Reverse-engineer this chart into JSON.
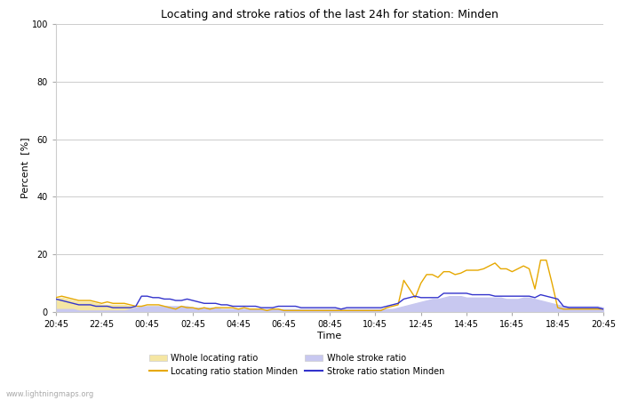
{
  "title": "Locating and stroke ratios of the last 24h for station: Minden",
  "xlabel": "Time",
  "ylabel": "Percent  [%]",
  "xlim": [
    0,
    96
  ],
  "ylim": [
    0,
    100
  ],
  "yticks": [
    0,
    20,
    40,
    60,
    80,
    100
  ],
  "xtick_labels": [
    "20:45",
    "22:45",
    "00:45",
    "02:45",
    "04:45",
    "06:45",
    "08:45",
    "10:45",
    "12:45",
    "14:45",
    "16:45",
    "18:45",
    "20:45"
  ],
  "xtick_positions": [
    0,
    8,
    16,
    24,
    32,
    40,
    48,
    56,
    64,
    72,
    80,
    88,
    96
  ],
  "color_locating_fill": "#f5e6a3",
  "color_locating_line": "#e6a800",
  "color_stroke_fill": "#c8c8f0",
  "color_stroke_line": "#3333cc",
  "watermark": "www.lightningmaps.org",
  "legend_labels": [
    "Whole locating ratio",
    "Locating ratio station Minden",
    "Whole stroke ratio",
    "Stroke ratio station Minden"
  ],
  "whole_locating": [
    4.5,
    5.0,
    4.5,
    4.0,
    3.5,
    3.5,
    3.5,
    3.0,
    2.5,
    2.5,
    2.5,
    2.5,
    2.5,
    2.0,
    1.5,
    1.5,
    2.0,
    2.0,
    2.0,
    2.0,
    1.0,
    1.0,
    1.5,
    1.0,
    1.0,
    1.0,
    1.0,
    1.0,
    1.0,
    1.0,
    1.0,
    1.0,
    1.0,
    1.0,
    0.5,
    0.5,
    0.5,
    0.5,
    0.5,
    0.5,
    0.5,
    0.5,
    0.5,
    0.5,
    0.5,
    0.5,
    0.5,
    0.5,
    0.5,
    0.5,
    0.5,
    0.5,
    0.5,
    0.5,
    0.5,
    0.5,
    0.5,
    1.0,
    1.0,
    1.0,
    1.0,
    1.5,
    2.0,
    2.0,
    2.0,
    2.0,
    2.0,
    2.0,
    2.5,
    2.5,
    2.5,
    2.5,
    2.0,
    2.0,
    2.0,
    2.0,
    2.0,
    2.0,
    2.0,
    1.5,
    1.5,
    1.5,
    1.5,
    1.5,
    1.5,
    1.5,
    1.5,
    1.5,
    1.5,
    1.5,
    1.5,
    1.5,
    1.5,
    1.5,
    1.5,
    1.5,
    1.0
  ],
  "locating_station": [
    5.0,
    5.5,
    5.0,
    4.5,
    4.0,
    4.0,
    4.0,
    3.5,
    3.0,
    3.5,
    3.0,
    3.0,
    3.0,
    2.5,
    2.0,
    2.0,
    2.5,
    2.5,
    2.5,
    2.0,
    1.5,
    1.0,
    2.0,
    1.5,
    1.5,
    1.0,
    1.5,
    1.0,
    1.5,
    1.5,
    1.5,
    1.5,
    1.0,
    1.5,
    1.0,
    1.0,
    1.0,
    0.5,
    1.0,
    1.0,
    0.5,
    0.5,
    0.5,
    0.5,
    0.5,
    0.5,
    0.5,
    0.5,
    0.5,
    0.5,
    0.5,
    0.5,
    0.5,
    0.5,
    0.5,
    0.5,
    0.5,
    0.5,
    1.5,
    2.0,
    2.5,
    11.0,
    8.0,
    5.0,
    10.0,
    13.0,
    13.0,
    12.0,
    14.0,
    14.0,
    13.0,
    13.5,
    14.5,
    14.5,
    14.5,
    15.0,
    16.0,
    17.0,
    15.0,
    15.0,
    14.0,
    15.0,
    16.0,
    15.0,
    8.0,
    18.0,
    18.0,
    10.0,
    1.5,
    1.0,
    1.0,
    1.0,
    1.0,
    1.0,
    1.0,
    1.0,
    1.0
  ],
  "whole_stroke": [
    1.0,
    1.0,
    1.0,
    1.0,
    0.5,
    0.5,
    0.5,
    0.5,
    0.5,
    0.5,
    0.5,
    0.5,
    0.5,
    1.0,
    1.5,
    2.0,
    2.0,
    2.0,
    2.0,
    2.0,
    2.0,
    2.0,
    2.0,
    2.0,
    1.5,
    1.5,
    1.5,
    1.5,
    1.5,
    1.0,
    1.0,
    1.0,
    1.0,
    1.0,
    1.0,
    1.0,
    1.0,
    1.0,
    1.0,
    1.0,
    1.0,
    1.0,
    1.0,
    1.0,
    1.0,
    1.0,
    1.0,
    1.0,
    1.0,
    1.0,
    1.0,
    1.0,
    1.0,
    1.0,
    1.0,
    1.0,
    1.0,
    1.0,
    1.0,
    1.0,
    1.5,
    2.0,
    2.5,
    3.0,
    3.5,
    4.0,
    4.5,
    4.5,
    5.0,
    5.5,
    5.5,
    5.5,
    5.0,
    5.0,
    5.0,
    5.0,
    5.0,
    5.0,
    5.0,
    4.5,
    4.5,
    4.5,
    5.0,
    5.0,
    4.5,
    4.0,
    3.5,
    3.0,
    2.5,
    2.0,
    2.0,
    2.0,
    2.0,
    2.0,
    2.0,
    2.0,
    1.5
  ],
  "stroke_station": [
    4.5,
    4.0,
    3.5,
    3.0,
    2.5,
    2.5,
    2.5,
    2.0,
    2.0,
    2.0,
    1.5,
    1.5,
    1.5,
    1.5,
    2.0,
    5.5,
    5.5,
    5.0,
    5.0,
    4.5,
    4.5,
    4.0,
    4.0,
    4.5,
    4.0,
    3.5,
    3.0,
    3.0,
    3.0,
    2.5,
    2.5,
    2.0,
    2.0,
    2.0,
    2.0,
    2.0,
    1.5,
    1.5,
    1.5,
    2.0,
    2.0,
    2.0,
    2.0,
    1.5,
    1.5,
    1.5,
    1.5,
    1.5,
    1.5,
    1.5,
    1.0,
    1.5,
    1.5,
    1.5,
    1.5,
    1.5,
    1.5,
    1.5,
    2.0,
    2.5,
    3.0,
    4.5,
    5.0,
    5.5,
    5.0,
    5.0,
    5.0,
    5.0,
    6.5,
    6.5,
    6.5,
    6.5,
    6.5,
    6.0,
    6.0,
    6.0,
    6.0,
    5.5,
    5.5,
    5.5,
    5.5,
    5.5,
    5.5,
    5.5,
    5.0,
    6.0,
    5.5,
    5.0,
    4.5,
    2.0,
    1.5,
    1.5,
    1.5,
    1.5,
    1.5,
    1.5,
    1.0
  ]
}
